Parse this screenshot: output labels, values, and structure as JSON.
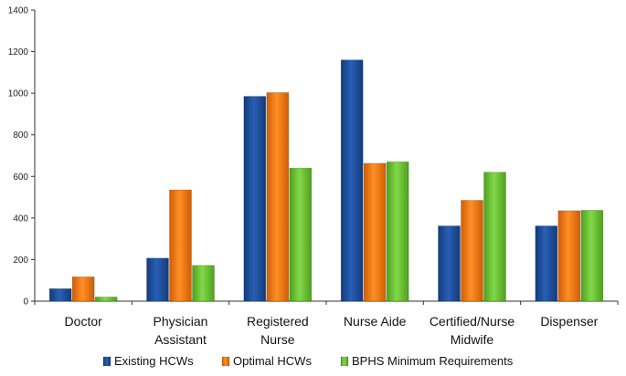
{
  "chart_data": {
    "type": "bar",
    "title": "",
    "xlabel": "",
    "ylabel": "",
    "ylim": [
      0,
      1400
    ],
    "yticks": [
      0,
      200,
      400,
      600,
      800,
      1000,
      1200,
      1400
    ],
    "categories": [
      [
        "Doctor"
      ],
      [
        "Physician",
        "Assistant"
      ],
      [
        "Registered",
        "Nurse"
      ],
      [
        "Nurse Aide"
      ],
      [
        "Certified/Nurse",
        "Midwife"
      ],
      [
        "Dispenser"
      ]
    ],
    "series": [
      {
        "name": "Existing HCWs",
        "color": "#1f4e9b",
        "values": [
          60,
          207,
          985,
          1160,
          362,
          362
        ]
      },
      {
        "name": "Optimal HCWs",
        "color": "#f07a10",
        "values": [
          117,
          535,
          1003,
          663,
          485,
          435
        ]
      },
      {
        "name": "BPHS Minimum Requirements",
        "color": "#6cc232",
        "values": [
          20,
          172,
          640,
          670,
          620,
          437
        ]
      }
    ],
    "legend_position": "bottom"
  }
}
